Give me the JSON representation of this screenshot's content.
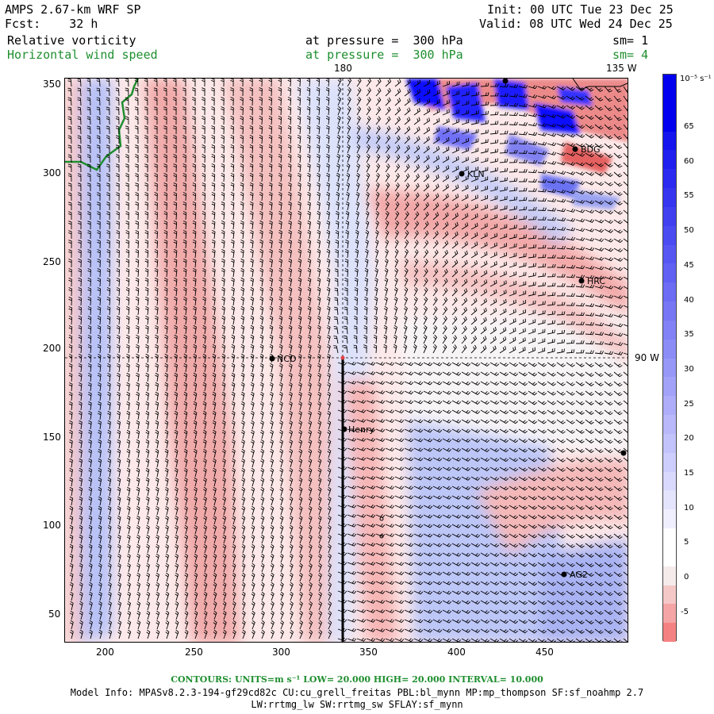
{
  "header": {
    "model_title": "AMPS 2.67-km WRF SP",
    "fcst_label": "Fcst:    32 h",
    "init_label": "Init: 00 UTC Tue 23 Dec 25",
    "valid_label": "Valid: 08 UTC Wed 24 Dec 25",
    "field1_name": "Relative vorticity",
    "field1_level": "at pressure =  300 hPa",
    "field1_sm": "sm= 1",
    "field2_name": "Horizontal wind speed",
    "field2_level": "at pressure =  300 hPa",
    "field2_sm": "sm= 4"
  },
  "map": {
    "lon_labels": {
      "top_180": "180",
      "top_135w": "135 W",
      "right_90w": "90 W"
    },
    "x_ticks": [
      "200",
      "250",
      "300",
      "350",
      "400",
      "450"
    ],
    "y_ticks": [
      "350",
      "300",
      "250",
      "200",
      "150",
      "100",
      "50"
    ],
    "stations": [
      {
        "name": "NCO"
      },
      {
        "name": "Henry"
      },
      {
        "name": "KLN"
      },
      {
        "name": "BDG"
      },
      {
        "name": "HRC"
      },
      {
        "name": "AG2"
      }
    ],
    "colors": {
      "coast": "#1f8f2f",
      "positive": "#e05050",
      "negative": "#1a1aff"
    }
  },
  "colorbar": {
    "unit_label": "10⁻⁵ s⁻¹",
    "labels": [
      "65",
      "60",
      "55",
      "50",
      "45",
      "40",
      "35",
      "30",
      "25",
      "20",
      "15",
      "10",
      "5",
      "0",
      "-5"
    ]
  },
  "footer": {
    "contours": "CONTOURS:  UNITS=m s⁻¹  LOW=  20.000      HIGH=  20.000      INTERVAL=   10.000",
    "model_info": "Model Info: MPASv8.2.3-194-gf29cd82c CU:cu_grell_freitas PBL:bl_mynn MP:mp_thompson SF:sf_noahmp 2.7",
    "model_info2": "LW:rrtmg_lw SW:rrtmg_sw SFLAY:sf_mynn"
  }
}
